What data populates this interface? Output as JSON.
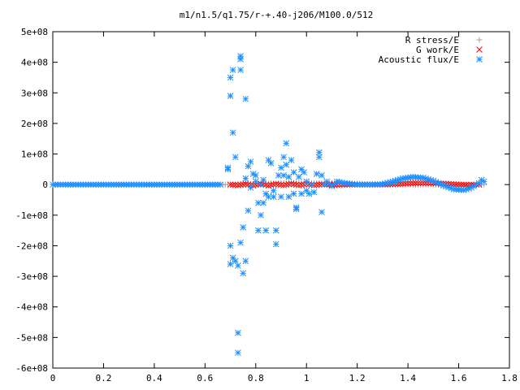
{
  "chart_data": {
    "type": "scatter",
    "title": "m1/n1.5/q1.75/r-+.40-j206/M100.0/512",
    "xlabel": "",
    "ylabel": "",
    "xlim": [
      0,
      1.8
    ],
    "ylim": [
      -600000000,
      500000000
    ],
    "x_ticks": [
      "0",
      "0.2",
      "0.4",
      "0.6",
      "0.8",
      "1",
      "1.2",
      "1.4",
      "1.6",
      "1.8"
    ],
    "y_ticks": [
      "5e+08",
      "4e+08",
      "3e+08",
      "2e+08",
      "1e+08",
      "0",
      "-1e+08",
      "-2e+08",
      "-3e+08",
      "-4e+08",
      "-5e+08",
      "-6e+08"
    ],
    "legend_position": "top-right",
    "grid": false,
    "series": [
      {
        "name": "R stress/E",
        "marker": "plus",
        "color": "#a0a0a0",
        "points": [
          [
            0.0,
            0
          ],
          [
            0.1,
            0
          ],
          [
            0.2,
            0
          ],
          [
            0.3,
            0
          ],
          [
            0.4,
            0
          ],
          [
            0.5,
            0
          ],
          [
            0.6,
            0
          ],
          [
            0.68,
            0
          ],
          [
            0.76,
            2000000
          ],
          [
            0.82,
            3000000
          ],
          [
            0.88,
            4000000
          ],
          [
            0.94,
            5000000
          ],
          [
            1.0,
            5000000
          ],
          [
            1.06,
            5000000
          ],
          [
            1.12,
            4000000
          ],
          [
            1.18,
            3000000
          ],
          [
            1.23,
            2000000
          ],
          [
            1.28,
            1000000
          ],
          [
            1.34,
            0
          ],
          [
            1.4,
            0
          ],
          [
            1.48,
            0
          ],
          [
            1.56,
            0
          ],
          [
            1.64,
            0
          ],
          [
            1.7,
            0
          ]
        ]
      },
      {
        "name": "G work/E",
        "marker": "cross",
        "color": "#ff0000",
        "points": [
          [
            0.7,
            0
          ],
          [
            0.73,
            -2000000
          ],
          [
            0.76,
            2000000
          ],
          [
            0.79,
            -3000000
          ],
          [
            0.82,
            3000000
          ],
          [
            0.85,
            -3000000
          ],
          [
            0.88,
            2000000
          ],
          [
            0.91,
            -2000000
          ],
          [
            0.94,
            3000000
          ],
          [
            0.97,
            -2000000
          ],
          [
            1.0,
            2000000
          ],
          [
            1.03,
            -2000000
          ],
          [
            1.06,
            1000000
          ],
          [
            1.1,
            -1000000
          ],
          [
            1.14,
            0
          ],
          [
            1.2,
            0
          ],
          [
            1.3,
            0
          ],
          [
            1.36,
            2000000
          ],
          [
            1.4,
            4000000
          ],
          [
            1.44,
            5000000
          ],
          [
            1.48,
            5000000
          ],
          [
            1.52,
            4000000
          ],
          [
            1.56,
            2000000
          ],
          [
            1.6,
            0
          ],
          [
            1.64,
            -1000000
          ],
          [
            1.68,
            0
          ]
        ]
      },
      {
        "name": "Acoustic flux/E",
        "marker": "star",
        "color": "#1e90ff",
        "points": [
          [
            0.0,
            0
          ],
          [
            0.1,
            0
          ],
          [
            0.2,
            0
          ],
          [
            0.3,
            0
          ],
          [
            0.4,
            0
          ],
          [
            0.5,
            0
          ],
          [
            0.6,
            0
          ],
          [
            0.66,
            0
          ],
          [
            0.69,
            55000000
          ],
          [
            0.69,
            50000000
          ],
          [
            0.7,
            -200000000
          ],
          [
            0.7,
            -260000000
          ],
          [
            0.7,
            350000000
          ],
          [
            0.7,
            290000000
          ],
          [
            0.71,
            375000000
          ],
          [
            0.71,
            -240000000
          ],
          [
            0.71,
            170000000
          ],
          [
            0.72,
            90000000
          ],
          [
            0.72,
            -250000000
          ],
          [
            0.73,
            -550000000
          ],
          [
            0.73,
            -485000000
          ],
          [
            0.73,
            -265000000
          ],
          [
            0.74,
            420000000
          ],
          [
            0.74,
            410000000
          ],
          [
            0.74,
            375000000
          ],
          [
            0.74,
            -190000000
          ],
          [
            0.75,
            -140000000
          ],
          [
            0.75,
            -290000000
          ],
          [
            0.76,
            -250000000
          ],
          [
            0.76,
            280000000
          ],
          [
            0.76,
            20000000
          ],
          [
            0.77,
            60000000
          ],
          [
            0.77,
            -85000000
          ],
          [
            0.78,
            75000000
          ],
          [
            0.78,
            -10000000
          ],
          [
            0.79,
            35000000
          ],
          [
            0.8,
            30000000
          ],
          [
            0.8,
            10000000
          ],
          [
            0.81,
            -60000000
          ],
          [
            0.81,
            -150000000
          ],
          [
            0.82,
            -100000000
          ],
          [
            0.82,
            0
          ],
          [
            0.83,
            -60000000
          ],
          [
            0.83,
            15000000
          ],
          [
            0.84,
            -30000000
          ],
          [
            0.84,
            -150000000
          ],
          [
            0.85,
            80000000
          ],
          [
            0.85,
            -40000000
          ],
          [
            0.86,
            70000000
          ],
          [
            0.87,
            -40000000
          ],
          [
            0.87,
            -20000000
          ],
          [
            0.88,
            -195000000
          ],
          [
            0.88,
            -150000000
          ],
          [
            0.89,
            30000000
          ],
          [
            0.9,
            55000000
          ],
          [
            0.9,
            -40000000
          ],
          [
            0.91,
            90000000
          ],
          [
            0.91,
            30000000
          ],
          [
            0.92,
            135000000
          ],
          [
            0.92,
            65000000
          ],
          [
            0.93,
            -40000000
          ],
          [
            0.93,
            25000000
          ],
          [
            0.94,
            80000000
          ],
          [
            0.95,
            40000000
          ],
          [
            0.95,
            -30000000
          ],
          [
            0.96,
            -80000000
          ],
          [
            0.96,
            -75000000
          ],
          [
            0.97,
            25000000
          ],
          [
            0.98,
            -30000000
          ],
          [
            0.98,
            50000000
          ],
          [
            0.99,
            40000000
          ],
          [
            1.0,
            -20000000
          ],
          [
            1.0,
            10000000
          ],
          [
            1.01,
            -30000000
          ],
          [
            1.02,
            0
          ],
          [
            1.03,
            -25000000
          ],
          [
            1.04,
            35000000
          ],
          [
            1.05,
            105000000
          ],
          [
            1.05,
            90000000
          ],
          [
            1.06,
            -90000000
          ],
          [
            1.06,
            30000000
          ],
          [
            1.07,
            0
          ],
          [
            1.08,
            10000000
          ],
          [
            1.1,
            -5000000
          ],
          [
            1.12,
            10000000
          ],
          [
            1.15,
            5000000
          ],
          [
            1.2,
            0
          ],
          [
            1.25,
            0
          ],
          [
            1.3,
            1000000
          ],
          [
            1.34,
            10000000
          ],
          [
            1.38,
            20000000
          ],
          [
            1.42,
            25000000
          ],
          [
            1.46,
            22000000
          ],
          [
            1.5,
            12000000
          ],
          [
            1.54,
            -3000000
          ],
          [
            1.58,
            -15000000
          ],
          [
            1.62,
            -18000000
          ],
          [
            1.65,
            -10000000
          ],
          [
            1.68,
            5000000
          ],
          [
            1.69,
            15000000
          ],
          [
            1.7,
            10000000
          ]
        ]
      }
    ]
  }
}
